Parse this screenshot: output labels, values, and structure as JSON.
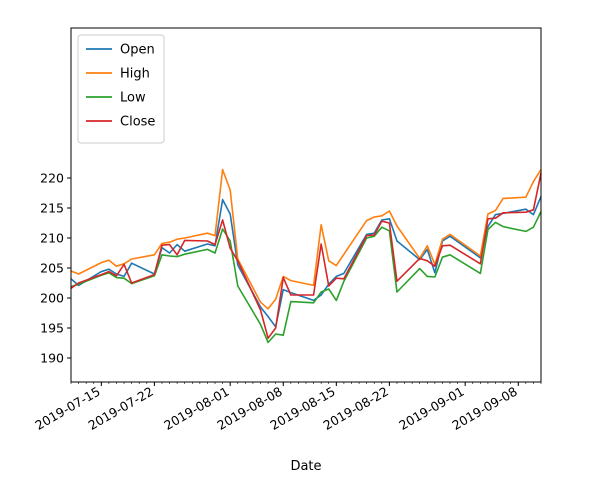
{
  "chart_data": {
    "type": "line",
    "xlabel": "Date",
    "ylabel": "",
    "x_axis": {
      "type": "date",
      "range": [
        "2019-07-11",
        "2019-09-11"
      ],
      "tick_labels": [
        {
          "date": "2019-07-15",
          "label": "2019-07-15"
        },
        {
          "date": "2019-07-22",
          "label": "2019-07-22"
        },
        {
          "date": "2019-08-01",
          "label": "2019-08-01"
        },
        {
          "date": "2019-08-08",
          "label": "2019-08-08"
        },
        {
          "date": "2019-08-15",
          "label": "2019-08-15"
        },
        {
          "date": "2019-08-22",
          "label": "2019-08-22"
        },
        {
          "date": "2019-09-01",
          "label": "2019-09-01"
        },
        {
          "date": "2019-09-08",
          "label": "2019-09-08"
        }
      ]
    },
    "y_axis": {
      "range": [
        186,
        245
      ],
      "ticks": [
        190,
        195,
        200,
        205,
        210,
        215,
        220
      ]
    },
    "grid": false,
    "legend": {
      "position": "top-left",
      "entries": [
        "Open",
        "High",
        "Low",
        "Close"
      ]
    },
    "x": [
      "2019-07-11",
      "2019-07-12",
      "2019-07-15",
      "2019-07-16",
      "2019-07-17",
      "2019-07-18",
      "2019-07-19",
      "2019-07-22",
      "2019-07-23",
      "2019-07-24",
      "2019-07-25",
      "2019-07-26",
      "2019-07-29",
      "2019-07-30",
      "2019-07-31",
      "2019-08-01",
      "2019-08-02",
      "2019-08-05",
      "2019-08-06",
      "2019-08-07",
      "2019-08-08",
      "2019-08-09",
      "2019-08-12",
      "2019-08-13",
      "2019-08-14",
      "2019-08-15",
      "2019-08-16",
      "2019-08-19",
      "2019-08-20",
      "2019-08-21",
      "2019-08-22",
      "2019-08-23",
      "2019-08-26",
      "2019-08-27",
      "2019-08-28",
      "2019-08-29",
      "2019-08-30",
      "2019-09-03",
      "2019-09-04",
      "2019-09-05",
      "2019-09-06",
      "2019-09-09",
      "2019-09-10",
      "2019-09-11"
    ],
    "series": [
      {
        "name": "Open",
        "color": "#1f77b4",
        "values": [
          203.2,
          202.1,
          204.4,
          204.8,
          204.0,
          203.6,
          205.8,
          204.0,
          208.4,
          207.5,
          208.9,
          207.8,
          209.0,
          208.7,
          216.4,
          214.0,
          205.5,
          198.5,
          196.9,
          195.2,
          201.4,
          200.9,
          199.6,
          200.5,
          202.3,
          203.6,
          204.1,
          210.6,
          210.8,
          213.0,
          213.2,
          209.5,
          206.4,
          208.1,
          204.2,
          209.5,
          210.3,
          206.7,
          211.9,
          213.9,
          214.1,
          214.8,
          213.9,
          216.9
        ]
      },
      {
        "name": "High",
        "color": "#ff7f0e",
        "values": [
          204.5,
          204.0,
          205.9,
          206.3,
          205.3,
          205.7,
          206.5,
          207.2,
          209.1,
          209.3,
          209.8,
          210.0,
          210.8,
          210.4,
          221.4,
          218.0,
          206.5,
          199.3,
          198.2,
          199.8,
          203.6,
          202.9,
          202.1,
          212.2,
          206.2,
          205.4,
          207.3,
          212.9,
          213.5,
          213.7,
          214.5,
          212.0,
          206.6,
          208.7,
          205.6,
          209.8,
          210.6,
          207.0,
          214.0,
          214.6,
          216.6,
          216.8,
          219.4,
          221.4
        ]
      },
      {
        "name": "Low",
        "color": "#2ca02c",
        "values": [
          201.9,
          202.3,
          203.8,
          204.2,
          203.4,
          203.3,
          202.4,
          203.7,
          207.2,
          207.0,
          206.9,
          207.3,
          208.1,
          207.5,
          211.5,
          209.5,
          202.0,
          195.6,
          192.6,
          194.0,
          193.8,
          199.4,
          199.2,
          201.0,
          201.5,
          199.6,
          202.8,
          210.0,
          210.3,
          211.8,
          211.2,
          201.0,
          204.9,
          203.6,
          203.5,
          206.8,
          207.2,
          204.1,
          211.4,
          212.6,
          211.9,
          211.1,
          211.8,
          214.4
        ]
      },
      {
        "name": "Close",
        "color": "#d62728",
        "values": [
          201.6,
          202.5,
          203.9,
          204.4,
          203.7,
          205.6,
          202.5,
          203.9,
          208.8,
          208.9,
          207.2,
          209.6,
          209.5,
          208.9,
          213.0,
          208.3,
          206.2,
          198.0,
          193.3,
          195.0,
          203.4,
          200.5,
          200.5,
          209.0,
          202.0,
          203.3,
          203.2,
          210.4,
          210.5,
          212.8,
          212.5,
          202.8,
          206.6,
          206.2,
          205.3,
          208.7,
          208.8,
          205.7,
          213.2,
          213.3,
          214.2,
          214.3,
          214.7,
          220.8
        ]
      }
    ]
  }
}
